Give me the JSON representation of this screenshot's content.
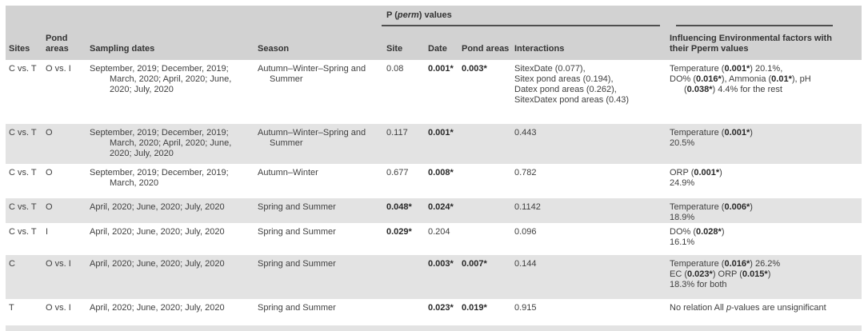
{
  "colors": {
    "header_bg": "#d2d2d2",
    "row_shade": "#e3e3e3",
    "rule": "#4f4f4f",
    "text": "#3f3f3f",
    "bold_text": "#282828"
  },
  "header": {
    "pperm_group": [
      {
        "segs": [
          {
            "t": "P ("
          },
          {
            "t": "perm",
            "i": true
          },
          {
            "t": ") values"
          }
        ]
      }
    ],
    "influencing_lines": [
      {
        "segs": [
          {
            "t": "Influencing Environmental factors with"
          }
        ]
      },
      {
        "segs": [
          {
            "t": "their Pperm values"
          }
        ]
      }
    ],
    "columns": {
      "sites": "Sites",
      "pond_areas": "Pond areas",
      "sampling_dates": "Sampling dates",
      "season": "Season",
      "site": "Site",
      "date": "Date",
      "pond_areas_p": "Pond areas",
      "interactions": "Interactions"
    }
  },
  "rows": [
    {
      "sites": "C vs. T",
      "pond_areas": "O vs. I",
      "dates": [
        {
          "segs": [
            {
              "t": "September, 2019; December, 2019;"
            }
          ]
        },
        {
          "ind": true,
          "segs": [
            {
              "t": "March, 2020; April, 2020; June,"
            }
          ]
        },
        {
          "ind": true,
          "segs": [
            {
              "t": "2020; July, 2020"
            }
          ]
        }
      ],
      "season": [
        {
          "segs": [
            {
              "t": "Autumn–Winter–Spring and"
            }
          ]
        },
        {
          "ind": true,
          "segs": [
            {
              "t": "Summer"
            }
          ]
        }
      ],
      "site": "0.08",
      "date": "0.001*",
      "pond": "0.003*",
      "interactions": [
        {
          "segs": [
            {
              "t": "SitexDate (0.077),"
            }
          ]
        },
        {
          "segs": [
            {
              "t": "Sitex pond areas (0.194),"
            }
          ]
        },
        {
          "segs": [
            {
              "t": "Datex pond areas (0.262),"
            }
          ]
        },
        {
          "segs": [
            {
              "t": "SitexDatex pond areas (0.43)"
            }
          ]
        }
      ],
      "influencing": [
        {
          "segs": [
            {
              "t": "Temperature ("
            },
            {
              "t": "0.001*",
              "b": true
            },
            {
              "t": ") 20.1%,"
            }
          ]
        },
        {
          "segs": [
            {
              "t": "DO% ("
            },
            {
              "t": "0.016*",
              "b": true
            },
            {
              "t": "), Ammonia ("
            },
            {
              "t": "0.01*",
              "b": true
            },
            {
              "t": "), pH"
            }
          ]
        },
        {
          "ind": true,
          "segs": [
            {
              "t": "("
            },
            {
              "t": "0.038*",
              "b": true
            },
            {
              "t": ") 4.4% for the rest"
            }
          ]
        }
      ]
    },
    {
      "sites": "C vs. T",
      "pond_areas": "O",
      "dates": [
        {
          "segs": [
            {
              "t": "September, 2019; December, 2019;"
            }
          ]
        },
        {
          "ind": true,
          "segs": [
            {
              "t": "March, 2020; April, 2020; June,"
            }
          ]
        },
        {
          "ind": true,
          "segs": [
            {
              "t": "2020; July, 2020"
            }
          ]
        }
      ],
      "season": [
        {
          "segs": [
            {
              "t": "Autumn–Winter–Spring and"
            }
          ]
        },
        {
          "ind": true,
          "segs": [
            {
              "t": "Summer"
            }
          ]
        }
      ],
      "site": "0.117",
      "date": "0.001*",
      "pond": "",
      "interactions": [
        {
          "segs": [
            {
              "t": "0.443"
            }
          ]
        }
      ],
      "influencing": [
        {
          "segs": [
            {
              "t": "Temperature ("
            },
            {
              "t": "0.001*",
              "b": true
            },
            {
              "t": ")"
            }
          ]
        },
        {
          "segs": [
            {
              "t": "20.5%"
            }
          ]
        }
      ]
    },
    {
      "sites": "C vs. T",
      "pond_areas": "O",
      "dates": [
        {
          "segs": [
            {
              "t": "September, 2019; December, 2019;"
            }
          ]
        },
        {
          "ind": true,
          "segs": [
            {
              "t": "March, 2020"
            }
          ]
        }
      ],
      "season": [
        {
          "segs": [
            {
              "t": "Autumn–Winter"
            }
          ]
        }
      ],
      "site": "0.677",
      "date": "0.008*",
      "pond": "",
      "interactions": [
        {
          "segs": [
            {
              "t": "0.782"
            }
          ]
        }
      ],
      "influencing": [
        {
          "segs": [
            {
              "t": "ORP ("
            },
            {
              "t": "0.001*",
              "b": true
            },
            {
              "t": ")"
            }
          ]
        },
        {
          "segs": [
            {
              "t": "24.9%"
            }
          ]
        }
      ]
    },
    {
      "sites": "C vs. T",
      "pond_areas": "O",
      "dates": [
        {
          "segs": [
            {
              "t": "April, 2020; June, 2020; July, 2020"
            }
          ]
        }
      ],
      "season": [
        {
          "segs": [
            {
              "t": "Spring and Summer"
            }
          ]
        }
      ],
      "site": "0.048*",
      "date": "0.024*",
      "pond": "",
      "interactions": [
        {
          "segs": [
            {
              "t": "0.1142"
            }
          ]
        }
      ],
      "influencing": [
        {
          "segs": [
            {
              "t": "Temperature ("
            },
            {
              "t": "0.006*",
              "b": true
            },
            {
              "t": ")"
            }
          ]
        },
        {
          "segs": [
            {
              "t": "18.9%"
            }
          ]
        }
      ]
    },
    {
      "sites": "C vs. T",
      "pond_areas": "I",
      "dates": [
        {
          "segs": [
            {
              "t": "April, 2020; June, 2020; July, 2020"
            }
          ]
        }
      ],
      "season": [
        {
          "segs": [
            {
              "t": "Spring and Summer"
            }
          ]
        }
      ],
      "site": "0.029*",
      "date": "0.204",
      "pond": "",
      "interactions": [
        {
          "segs": [
            {
              "t": "0.096"
            }
          ]
        }
      ],
      "influencing": [
        {
          "segs": [
            {
              "t": "DO% ("
            },
            {
              "t": "0.028*",
              "b": true
            },
            {
              "t": ")"
            }
          ]
        },
        {
          "segs": [
            {
              "t": "16.1%"
            }
          ]
        }
      ]
    },
    {
      "sites": "C",
      "pond_areas": "O vs. I",
      "dates": [
        {
          "segs": [
            {
              "t": "April, 2020; June, 2020; July, 2020"
            }
          ]
        }
      ],
      "season": [
        {
          "segs": [
            {
              "t": "Spring and Summer"
            }
          ]
        }
      ],
      "site": "",
      "date": "0.003*",
      "pond": "0.007*",
      "interactions": [
        {
          "segs": [
            {
              "t": "0.144"
            }
          ]
        }
      ],
      "influencing": [
        {
          "segs": [
            {
              "t": "Temperature ("
            },
            {
              "t": "0.016*",
              "b": true
            },
            {
              "t": ") 26.2%"
            }
          ]
        },
        {
          "segs": [
            {
              "t": "EC ("
            },
            {
              "t": "0.023*",
              "b": true
            },
            {
              "t": ") ORP ("
            },
            {
              "t": "0.015*",
              "b": true
            },
            {
              "t": ")"
            }
          ]
        },
        {
          "segs": [
            {
              "t": "18.3% for both"
            }
          ]
        }
      ]
    },
    {
      "sites": "T",
      "pond_areas": "O vs. I",
      "dates": [
        {
          "segs": [
            {
              "t": "April, 2020; June, 2020; July, 2020"
            }
          ]
        }
      ],
      "season": [
        {
          "segs": [
            {
              "t": "Spring and Summer"
            }
          ]
        }
      ],
      "site": "",
      "date": "0.023*",
      "pond": "0.019*",
      "interactions": [
        {
          "segs": [
            {
              "t": "0.915"
            }
          ]
        }
      ],
      "influencing": [
        {
          "segs": [
            {
              "t": "No relation All "
            },
            {
              "t": "p",
              "i": true
            },
            {
              "t": "-values are unsignificant"
            }
          ]
        }
      ]
    }
  ]
}
